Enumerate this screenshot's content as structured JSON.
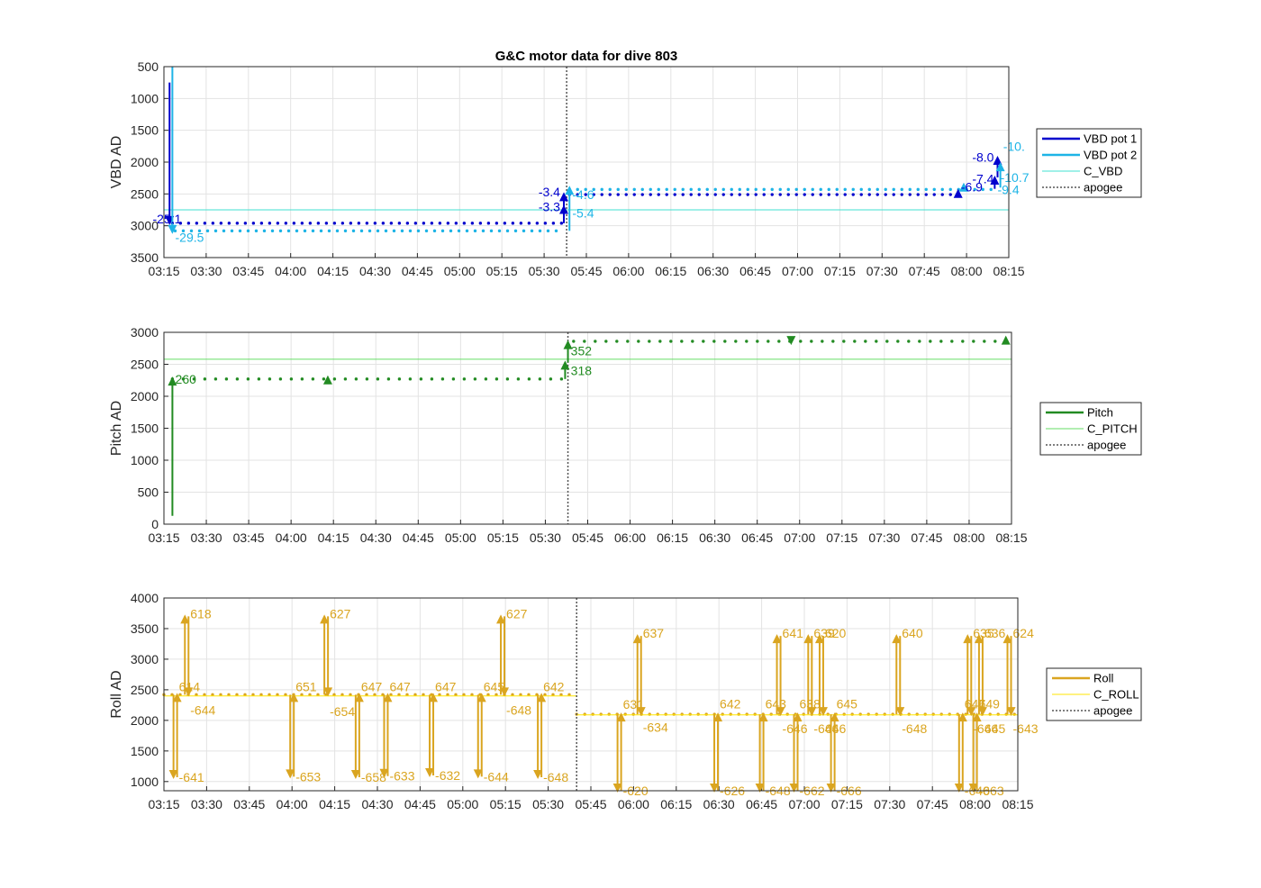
{
  "chart_data": [
    {
      "type": "line",
      "title": "G&C motor data for dive 803",
      "ylabel": "VBD AD",
      "xlabel": "",
      "x_ticks": [
        "03:15",
        "03:30",
        "03:45",
        "04:00",
        "04:15",
        "04:30",
        "04:45",
        "05:00",
        "05:15",
        "05:30",
        "05:45",
        "06:00",
        "06:15",
        "06:30",
        "06:45",
        "07:00",
        "07:15",
        "07:30",
        "07:45",
        "08:00",
        "08:15"
      ],
      "y_ticks": [
        "500",
        "1000",
        "1500",
        "2000",
        "2500",
        "3000",
        "3500"
      ],
      "xlim": [
        "03:15",
        "08:15"
      ],
      "ylim": [
        500,
        3500
      ],
      "y_reversed": true,
      "grid": true,
      "legend_position": "outside-right",
      "legend": [
        "VBD pot 1",
        "VBD pot 2",
        "C_VBD",
        "apogee"
      ],
      "apogee": "05:38",
      "colors": {
        "pot1": "#0000cd",
        "pot2": "#1eb4e6",
        "c_vbd": "#40e0d0",
        "apogee": "#555555"
      },
      "series": [
        {
          "name": "VBD pot 1",
          "style": "dots",
          "from": "03:18",
          "to": "05:37",
          "value": 2960
        },
        {
          "name": "VBD pot 1",
          "style": "dots",
          "from": "05:39",
          "to": "07:55",
          "value": 2510
        },
        {
          "name": "VBD pot 2",
          "style": "dots",
          "from": "03:19",
          "to": "05:37",
          "value": 3080
        },
        {
          "name": "VBD pot 2",
          "style": "dots",
          "from": "05:39",
          "to": "08:09",
          "value": 2430
        },
        {
          "name": "C_VBD",
          "style": "line",
          "value": 2750
        }
      ],
      "moves": [
        {
          "t": "03:17",
          "y0": 750,
          "y1": 2960,
          "color": "pot1",
          "head": "down"
        },
        {
          "t": "03:18",
          "y0": 500,
          "y1": 3100,
          "color": "pot2",
          "head": "down"
        },
        {
          "t": "05:37",
          "y0": 2960,
          "y1": 2700,
          "color": "pot1",
          "head": "up"
        },
        {
          "t": "05:37",
          "y0": 2700,
          "y1": 2500,
          "color": "pot1",
          "head": "up"
        },
        {
          "t": "05:39",
          "y0": 3080,
          "y1": 2400,
          "color": "pot2",
          "head": "up"
        },
        {
          "t": "07:57",
          "y0": 2500,
          "y1": 2450,
          "color": "pot1",
          "head": "up"
        },
        {
          "t": "07:59",
          "y0": 2450,
          "y1": 2350,
          "color": "pot2",
          "head": "up"
        },
        {
          "t": "08:10",
          "y0": 2420,
          "y1": 2240,
          "color": "pot1",
          "head": "up"
        },
        {
          "t": "08:11",
          "y0": 2240,
          "y1": 1930,
          "color": "pot1",
          "head": "up"
        },
        {
          "t": "08:12",
          "y0": 2400,
          "y1": 2030,
          "color": "pot2",
          "head": "up"
        }
      ],
      "annotations": [
        {
          "text": "-25.1",
          "t": "03:11",
          "y": 2960,
          "color": "pot1"
        },
        {
          "text": "-29.5",
          "t": "03:19",
          "y": 3250,
          "color": "pot2"
        },
        {
          "text": "-3.4",
          "t": "05:28",
          "y": 2540,
          "color": "pot1"
        },
        {
          "text": "-3.3",
          "t": "05:28",
          "y": 2770,
          "color": "pot1"
        },
        {
          "text": "-4.6",
          "t": "05:40",
          "y": 2580,
          "color": "pot2"
        },
        {
          "text": "-5.4",
          "t": "05:40",
          "y": 2870,
          "color": "pot2"
        },
        {
          "text": "-8.0",
          "t": "08:02",
          "y": 1990,
          "color": "pot1"
        },
        {
          "text": "-10.",
          "t": "08:13",
          "y": 1820,
          "color": "pot2"
        },
        {
          "text": "-7.4",
          "t": "08:02",
          "y": 2330,
          "color": "pot1"
        },
        {
          "text": "-10.7",
          "t": "08:12",
          "y": 2310,
          "color": "pot2"
        },
        {
          "text": "-6.9",
          "t": "07:58",
          "y": 2460,
          "color": "pot1"
        },
        {
          "text": "-9.4",
          "t": "08:11",
          "y": 2500,
          "color": "pot2"
        }
      ]
    },
    {
      "type": "line",
      "title": "",
      "ylabel": "Pitch AD",
      "xlabel": "",
      "x_ticks": [
        "03:15",
        "03:30",
        "03:45",
        "04:00",
        "04:15",
        "04:30",
        "04:45",
        "05:00",
        "05:15",
        "05:30",
        "05:45",
        "06:00",
        "06:15",
        "06:30",
        "06:45",
        "07:00",
        "07:15",
        "07:30",
        "07:45",
        "08:00",
        "08:15"
      ],
      "y_ticks": [
        "0",
        "500",
        "1000",
        "1500",
        "2000",
        "2500",
        "3000"
      ],
      "xlim": [
        "03:15",
        "08:15"
      ],
      "ylim": [
        0,
        3000
      ],
      "grid": true,
      "legend_position": "outside-right",
      "legend": [
        "Pitch",
        "C_PITCH",
        "apogee"
      ],
      "apogee": "05:38",
      "colors": {
        "pitch": "#228b22",
        "c_pitch": "#66dd66",
        "apogee": "#555555"
      },
      "series": [
        {
          "name": "Pitch",
          "style": "dots",
          "from": "03:18",
          "to": "05:37",
          "value": 2270
        },
        {
          "name": "Pitch",
          "style": "dots",
          "from": "05:40",
          "to": "08:13",
          "value": 2860
        },
        {
          "name": "C_PITCH",
          "style": "line",
          "value": 2580
        }
      ],
      "moves": [
        {
          "t": "03:18",
          "y0": 130,
          "y1": 2280,
          "color": "pitch",
          "head": "up"
        },
        {
          "t": "04:13",
          "y0": 2270,
          "y1": 2300,
          "color": "pitch",
          "head": "up"
        },
        {
          "t": "05:37",
          "y0": 2270,
          "y1": 2530,
          "color": "pitch",
          "head": "up"
        },
        {
          "t": "05:38",
          "y0": 2530,
          "y1": 2850,
          "color": "pitch",
          "head": "up"
        },
        {
          "t": "06:57",
          "y0": 2880,
          "y1": 2830,
          "color": "pitch",
          "head": "down"
        },
        {
          "t": "08:13",
          "y0": 2870,
          "y1": 2920,
          "color": "pitch",
          "head": "up"
        }
      ],
      "annotations": [
        {
          "text": "260",
          "t": "03:19",
          "y": 2200,
          "color": "pitch"
        },
        {
          "text": "352",
          "t": "05:39",
          "y": 2640,
          "color": "pitch"
        },
        {
          "text": "318",
          "t": "05:39",
          "y": 2330,
          "color": "pitch"
        }
      ]
    },
    {
      "type": "line",
      "title": "",
      "ylabel": "Roll AD",
      "xlabel": "",
      "x_ticks": [
        "03:15",
        "03:30",
        "03:45",
        "04:00",
        "04:15",
        "04:30",
        "04:45",
        "05:00",
        "05:15",
        "05:30",
        "05:45",
        "06:00",
        "06:15",
        "06:30",
        "06:45",
        "07:00",
        "07:15",
        "07:30",
        "07:45",
        "08:00",
        "08:15"
      ],
      "y_ticks": [
        "1000",
        "1500",
        "2000",
        "2500",
        "3000",
        "3500",
        "4000"
      ],
      "xlim": [
        "03:15",
        "08:15"
      ],
      "ylim": [
        850,
        4000
      ],
      "grid": true,
      "legend_position": "outside-right",
      "legend": [
        "Roll",
        "C_ROLL",
        "apogee"
      ],
      "apogee": "05:40",
      "colors": {
        "roll": "#daa520",
        "c_roll": "#ffe600",
        "apogee": "#555555"
      },
      "series": [
        {
          "name": "Roll",
          "style": "dots",
          "from": "03:15",
          "to": "05:39",
          "value": 2420
        },
        {
          "name": "Roll",
          "style": "dots",
          "from": "05:40",
          "to": "08:14",
          "value": 2100
        },
        {
          "name": "C_ROLL",
          "style": "line",
          "from": "03:15",
          "to": "05:40",
          "value": 2400
        },
        {
          "name": "C_ROLL",
          "style": "line",
          "from": "05:40",
          "to": "08:15",
          "value": 2090
        }
      ],
      "spikes": [
        {
          "t": "03:19",
          "y": 1070,
          "label": "-641"
        },
        {
          "t": "03:19",
          "y": 2420,
          "label": "614"
        },
        {
          "t": "03:23",
          "y": 3700,
          "label": "618"
        },
        {
          "t": "03:23",
          "y": 2330,
          "label": "-644"
        },
        {
          "t": "04:00",
          "y": 1080,
          "label": "-653"
        },
        {
          "t": "04:00",
          "y": 2420,
          "label": "651"
        },
        {
          "t": "04:12",
          "y": 3700,
          "label": "627"
        },
        {
          "t": "04:12",
          "y": 2310,
          "label": "-654"
        },
        {
          "t": "04:23",
          "y": 1070,
          "label": "-658"
        },
        {
          "t": "04:23",
          "y": 2420,
          "label": "647"
        },
        {
          "t": "04:33",
          "y": 1090,
          "label": "-633"
        },
        {
          "t": "04:33",
          "y": 2420,
          "label": "647"
        },
        {
          "t": "04:49",
          "y": 1100,
          "label": "-632"
        },
        {
          "t": "04:49",
          "y": 2420,
          "label": "647"
        },
        {
          "t": "05:06",
          "y": 1080,
          "label": "-644"
        },
        {
          "t": "05:06",
          "y": 2420,
          "label": "645"
        },
        {
          "t": "05:14",
          "y": 3700,
          "label": "627"
        },
        {
          "t": "05:14",
          "y": 2330,
          "label": "-648"
        },
        {
          "t": "05:27",
          "y": 1070,
          "label": "-648"
        },
        {
          "t": "05:27",
          "y": 2420,
          "label": "642"
        },
        {
          "t": "05:55",
          "y": 850,
          "label": "-620"
        },
        {
          "t": "05:55",
          "y": 2130,
          "label": "631"
        },
        {
          "t": "06:02",
          "y": 3380,
          "label": "637"
        },
        {
          "t": "06:02",
          "y": 2050,
          "label": "-634"
        },
        {
          "t": "06:29",
          "y": 850,
          "label": "-626"
        },
        {
          "t": "06:29",
          "y": 2140,
          "label": "642"
        },
        {
          "t": "06:45",
          "y": 850,
          "label": "-648"
        },
        {
          "t": "06:45",
          "y": 2140,
          "label": "643"
        },
        {
          "t": "06:51",
          "y": 3380,
          "label": "641"
        },
        {
          "t": "06:51",
          "y": 2030,
          "label": "-646"
        },
        {
          "t": "06:57",
          "y": 850,
          "label": "-662"
        },
        {
          "t": "06:57",
          "y": 2140,
          "label": "638"
        },
        {
          "t": "07:02",
          "y": 3380,
          "label": "639"
        },
        {
          "t": "07:02",
          "y": 2030,
          "label": "-646"
        },
        {
          "t": "07:06",
          "y": 3380,
          "label": "620"
        },
        {
          "t": "07:06",
          "y": 2030,
          "label": "646"
        },
        {
          "t": "07:10",
          "y": 850,
          "label": "-666"
        },
        {
          "t": "07:10",
          "y": 2140,
          "label": "645"
        },
        {
          "t": "07:33",
          "y": 3380,
          "label": "640"
        },
        {
          "t": "07:33",
          "y": 2030,
          "label": "-648"
        },
        {
          "t": "07:55",
          "y": 850,
          "label": "-640"
        },
        {
          "t": "07:55",
          "y": 2140,
          "label": "647"
        },
        {
          "t": "07:58",
          "y": 3380,
          "label": "635"
        },
        {
          "t": "07:58",
          "y": 2030,
          "label": "-646"
        },
        {
          "t": "08:00",
          "y": 850,
          "label": "-663"
        },
        {
          "t": "08:00",
          "y": 2140,
          "label": "649"
        },
        {
          "t": "08:02",
          "y": 3380,
          "label": "636"
        },
        {
          "t": "08:02",
          "y": 2030,
          "label": "645"
        },
        {
          "t": "08:12",
          "y": 3380,
          "label": "624"
        },
        {
          "t": "08:12",
          "y": 2030,
          "label": "-643"
        }
      ]
    }
  ]
}
